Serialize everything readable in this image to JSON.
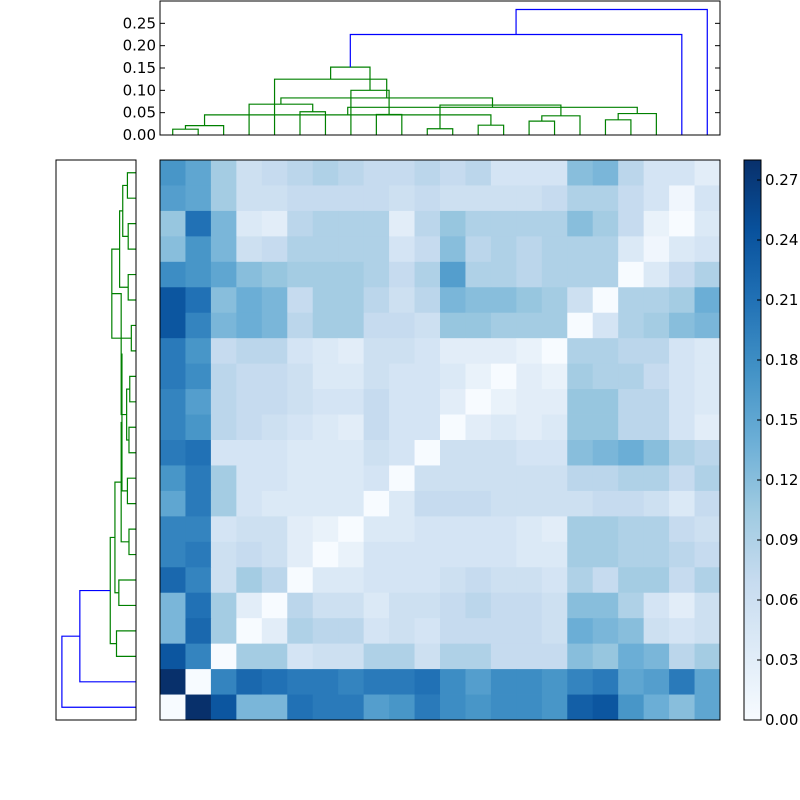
{
  "chart_data": [
    {
      "type": "dendrogram",
      "orientation": "top",
      "ylim": [
        0,
        0.3
      ],
      "yticks": [
        "0.00",
        "0.05",
        "0.10",
        "0.15",
        "0.20",
        "0.25"
      ],
      "colors": {
        "above_threshold": "#0000ff",
        "cluster": "#008000"
      },
      "leaf_order": [
        21,
        20,
        5,
        6,
        4,
        3,
        2,
        1,
        0,
        7,
        9,
        8,
        11,
        10,
        12,
        13,
        15,
        14,
        16,
        17,
        18,
        19
      ],
      "links": [
        {
          "a": 0,
          "b": 1,
          "h": 0.013,
          "c": "cluster"
        },
        {
          "a": 10,
          "b": 11,
          "h": 0.014,
          "c": "cluster"
        },
        {
          "a": 22,
          "b": 2,
          "h": 0.021,
          "c": "cluster"
        },
        {
          "a": 12,
          "b": 13,
          "h": 0.022,
          "c": "cluster"
        },
        {
          "a": 15,
          "b": 14,
          "h": 0.031,
          "c": "cluster"
        },
        {
          "a": 17,
          "b": 18,
          "h": 0.034,
          "c": "cluster"
        },
        {
          "a": 8,
          "b": 9,
          "h": 0.046,
          "c": "cluster"
        },
        {
          "a": 26,
          "b": 16,
          "h": 0.043,
          "c": "cluster"
        },
        {
          "a": 25,
          "b": 24,
          "h": 0.045,
          "c": "cluster"
        },
        {
          "a": 27,
          "b": 19,
          "h": 0.048,
          "c": "cluster"
        },
        {
          "a": 31,
          "b": 30,
          "h": 0.062,
          "c": "cluster"
        },
        {
          "a": 29,
          "b": 23,
          "h": 0.067,
          "c": "cluster"
        },
        {
          "a": 5,
          "b": 6,
          "h": 0.052,
          "c": "cluster"
        },
        {
          "a": 34,
          "b": 3,
          "h": 0.069,
          "c": "cluster"
        },
        {
          "a": 35,
          "b": 32,
          "h": 0.083,
          "c": "cluster"
        },
        {
          "a": 28,
          "b": 7,
          "h": 0.1,
          "c": "cluster"
        },
        {
          "a": 38,
          "b": 33,
          "h": 0.107,
          "c": "cluster"
        },
        {
          "a": 36,
          "b": 4,
          "h": 0.125,
          "c": "cluster"
        },
        {
          "a": 39,
          "b": 37,
          "h": 0.152,
          "c": "cluster"
        },
        {
          "a": 40,
          "b": 20,
          "h": 0.225,
          "c": "above_threshold"
        },
        {
          "a": 41,
          "b": 21,
          "h": 0.281,
          "c": "above_threshold"
        }
      ]
    },
    {
      "type": "dendrogram",
      "orientation": "left",
      "colors": {
        "above_threshold": "#0000ff",
        "cluster": "#008000"
      },
      "leaves_top_to_bottom": 22,
      "links": [
        {
          "a": 0,
          "b": 1,
          "h": 0.011,
          "c": "cluster"
        },
        {
          "a": 2,
          "b": 3,
          "h": 0.01,
          "c": "cluster"
        },
        {
          "a": 22,
          "b": 23,
          "h": 0.017,
          "c": "cluster"
        },
        {
          "a": 4,
          "b": 5,
          "h": 0.01,
          "c": "cluster"
        },
        {
          "a": 24,
          "b": 25,
          "h": 0.021,
          "c": "cluster"
        },
        {
          "a": 6,
          "b": 7,
          "h": 0.006,
          "c": "cluster"
        },
        {
          "a": 26,
          "b": 27,
          "h": 0.031,
          "c": "cluster"
        },
        {
          "a": 8,
          "b": 9,
          "h": 0.008,
          "c": "cluster"
        },
        {
          "a": 10,
          "b": 11,
          "h": 0.009,
          "c": "cluster"
        },
        {
          "a": 29,
          "b": 30,
          "h": 0.012,
          "c": "cluster"
        },
        {
          "a": 28,
          "b": 31,
          "h": 0.019,
          "c": "cluster"
        },
        {
          "a": 12,
          "b": 13,
          "h": 0.011,
          "c": "cluster"
        },
        {
          "a": 32,
          "b": 33,
          "h": 0.018,
          "c": "cluster"
        },
        {
          "a": 14,
          "b": 15,
          "h": 0.009,
          "c": "cluster"
        },
        {
          "a": 34,
          "b": 35,
          "h": 0.019,
          "c": "cluster"
        },
        {
          "a": 16,
          "b": 17,
          "h": 0.022,
          "c": "cluster"
        },
        {
          "a": 36,
          "b": 37,
          "h": 0.027,
          "c": "cluster"
        },
        {
          "a": 18,
          "b": 19,
          "h": 0.025,
          "c": "cluster"
        },
        {
          "a": 38,
          "b": 39,
          "h": 0.033,
          "c": "cluster"
        },
        {
          "a": 40,
          "b": 20,
          "h": 0.072,
          "c": "above_threshold"
        },
        {
          "a": 41,
          "b": 21,
          "h": 0.095,
          "c": "above_threshold"
        }
      ]
    },
    {
      "type": "heatmap",
      "rows": 22,
      "cols": 22,
      "colormap": "Blues",
      "vmin": 0.0,
      "vmax": 0.28,
      "values": [
        [
          0.17,
          0.15,
          0.1,
          0.06,
          0.07,
          0.08,
          0.09,
          0.08,
          0.07,
          0.07,
          0.08,
          0.07,
          0.08,
          0.05,
          0.05,
          0.05,
          0.12,
          0.13,
          0.08,
          0.05,
          0.05,
          0.03
        ],
        [
          0.16,
          0.15,
          0.1,
          0.06,
          0.06,
          0.07,
          0.07,
          0.07,
          0.07,
          0.06,
          0.07,
          0.06,
          0.06,
          0.06,
          0.06,
          0.07,
          0.09,
          0.09,
          0.07,
          0.05,
          0.01,
          0.05
        ],
        [
          0.11,
          0.21,
          0.13,
          0.04,
          0.03,
          0.08,
          0.09,
          0.09,
          0.09,
          0.03,
          0.08,
          0.11,
          0.09,
          0.09,
          0.09,
          0.09,
          0.12,
          0.1,
          0.07,
          0.02,
          0.0,
          0.04
        ],
        [
          0.12,
          0.17,
          0.13,
          0.06,
          0.07,
          0.09,
          0.09,
          0.09,
          0.09,
          0.05,
          0.07,
          0.12,
          0.08,
          0.09,
          0.08,
          0.09,
          0.09,
          0.09,
          0.04,
          0.01,
          0.04,
          0.05
        ],
        [
          0.18,
          0.17,
          0.15,
          0.12,
          0.11,
          0.1,
          0.1,
          0.1,
          0.09,
          0.07,
          0.09,
          0.16,
          0.09,
          0.09,
          0.08,
          0.09,
          0.09,
          0.09,
          0.0,
          0.04,
          0.07,
          0.09
        ],
        [
          0.24,
          0.21,
          0.12,
          0.14,
          0.13,
          0.07,
          0.1,
          0.1,
          0.08,
          0.06,
          0.08,
          0.13,
          0.12,
          0.12,
          0.11,
          0.1,
          0.06,
          0.0,
          0.09,
          0.09,
          0.1,
          0.14
        ],
        [
          0.24,
          0.19,
          0.13,
          0.14,
          0.13,
          0.08,
          0.1,
          0.1,
          0.07,
          0.07,
          0.06,
          0.11,
          0.11,
          0.1,
          0.1,
          0.1,
          0.0,
          0.05,
          0.09,
          0.1,
          0.12,
          0.13
        ],
        [
          0.2,
          0.17,
          0.07,
          0.08,
          0.08,
          0.05,
          0.04,
          0.03,
          0.06,
          0.06,
          0.05,
          0.03,
          0.03,
          0.03,
          0.02,
          0.0,
          0.09,
          0.09,
          0.08,
          0.08,
          0.05,
          0.04
        ],
        [
          0.2,
          0.18,
          0.08,
          0.07,
          0.07,
          0.06,
          0.04,
          0.04,
          0.06,
          0.05,
          0.05,
          0.04,
          0.02,
          0.0,
          0.03,
          0.02,
          0.1,
          0.09,
          0.09,
          0.07,
          0.05,
          0.04
        ],
        [
          0.19,
          0.16,
          0.08,
          0.07,
          0.07,
          0.06,
          0.05,
          0.05,
          0.07,
          0.05,
          0.05,
          0.03,
          0.0,
          0.02,
          0.03,
          0.03,
          0.11,
          0.11,
          0.08,
          0.08,
          0.05,
          0.04
        ],
        [
          0.19,
          0.17,
          0.08,
          0.07,
          0.06,
          0.05,
          0.04,
          0.03,
          0.07,
          0.05,
          0.05,
          0.0,
          0.03,
          0.04,
          0.03,
          0.04,
          0.11,
          0.11,
          0.08,
          0.08,
          0.05,
          0.03
        ],
        [
          0.2,
          0.21,
          0.05,
          0.05,
          0.05,
          0.04,
          0.04,
          0.04,
          0.06,
          0.05,
          0.0,
          0.06,
          0.06,
          0.06,
          0.05,
          0.05,
          0.12,
          0.13,
          0.14,
          0.12,
          0.09,
          0.08
        ],
        [
          0.17,
          0.2,
          0.1,
          0.05,
          0.05,
          0.04,
          0.04,
          0.04,
          0.05,
          0.0,
          0.06,
          0.06,
          0.06,
          0.06,
          0.06,
          0.06,
          0.08,
          0.08,
          0.09,
          0.09,
          0.07,
          0.09
        ],
        [
          0.15,
          0.2,
          0.1,
          0.05,
          0.04,
          0.04,
          0.04,
          0.04,
          0.0,
          0.04,
          0.07,
          0.07,
          0.07,
          0.06,
          0.06,
          0.06,
          0.06,
          0.07,
          0.07,
          0.06,
          0.04,
          0.07
        ],
        [
          0.19,
          0.19,
          0.05,
          0.06,
          0.06,
          0.03,
          0.02,
          0.0,
          0.04,
          0.04,
          0.05,
          0.05,
          0.05,
          0.05,
          0.04,
          0.03,
          0.1,
          0.1,
          0.09,
          0.09,
          0.07,
          0.06
        ],
        [
          0.19,
          0.2,
          0.06,
          0.07,
          0.06,
          0.03,
          0.0,
          0.02,
          0.05,
          0.05,
          0.05,
          0.05,
          0.05,
          0.05,
          0.04,
          0.04,
          0.1,
          0.1,
          0.09,
          0.09,
          0.08,
          0.07
        ],
        [
          0.22,
          0.19,
          0.06,
          0.1,
          0.08,
          0.0,
          0.04,
          0.04,
          0.05,
          0.05,
          0.05,
          0.06,
          0.07,
          0.06,
          0.06,
          0.05,
          0.09,
          0.07,
          0.1,
          0.1,
          0.07,
          0.09
        ],
        [
          0.13,
          0.21,
          0.1,
          0.03,
          0.0,
          0.08,
          0.06,
          0.06,
          0.04,
          0.06,
          0.06,
          0.07,
          0.08,
          0.07,
          0.07,
          0.06,
          0.12,
          0.12,
          0.09,
          0.05,
          0.03,
          0.06
        ],
        [
          0.13,
          0.22,
          0.1,
          0.0,
          0.03,
          0.09,
          0.08,
          0.08,
          0.05,
          0.06,
          0.05,
          0.07,
          0.07,
          0.07,
          0.07,
          0.06,
          0.14,
          0.13,
          0.12,
          0.06,
          0.05,
          0.06
        ],
        [
          0.24,
          0.19,
          0.0,
          0.1,
          0.1,
          0.05,
          0.06,
          0.06,
          0.09,
          0.09,
          0.06,
          0.09,
          0.09,
          0.07,
          0.07,
          0.07,
          0.12,
          0.11,
          0.14,
          0.13,
          0.08,
          0.1
        ],
        [
          0.28,
          0.0,
          0.19,
          0.22,
          0.21,
          0.2,
          0.2,
          0.19,
          0.2,
          0.2,
          0.21,
          0.18,
          0.16,
          0.18,
          0.18,
          0.17,
          0.19,
          0.2,
          0.15,
          0.16,
          0.2,
          0.15
        ],
        [
          0.0,
          0.28,
          0.24,
          0.13,
          0.13,
          0.21,
          0.2,
          0.2,
          0.16,
          0.17,
          0.2,
          0.18,
          0.17,
          0.18,
          0.18,
          0.17,
          0.23,
          0.24,
          0.17,
          0.14,
          0.12,
          0.15
        ]
      ]
    },
    {
      "type": "colorbar",
      "range": [
        0.0,
        0.28
      ],
      "ticks": [
        "0.00",
        "0.03",
        "0.06",
        "0.09",
        "0.12",
        "0.15",
        "0.18",
        "0.21",
        "0.24",
        "0.27"
      ]
    }
  ]
}
